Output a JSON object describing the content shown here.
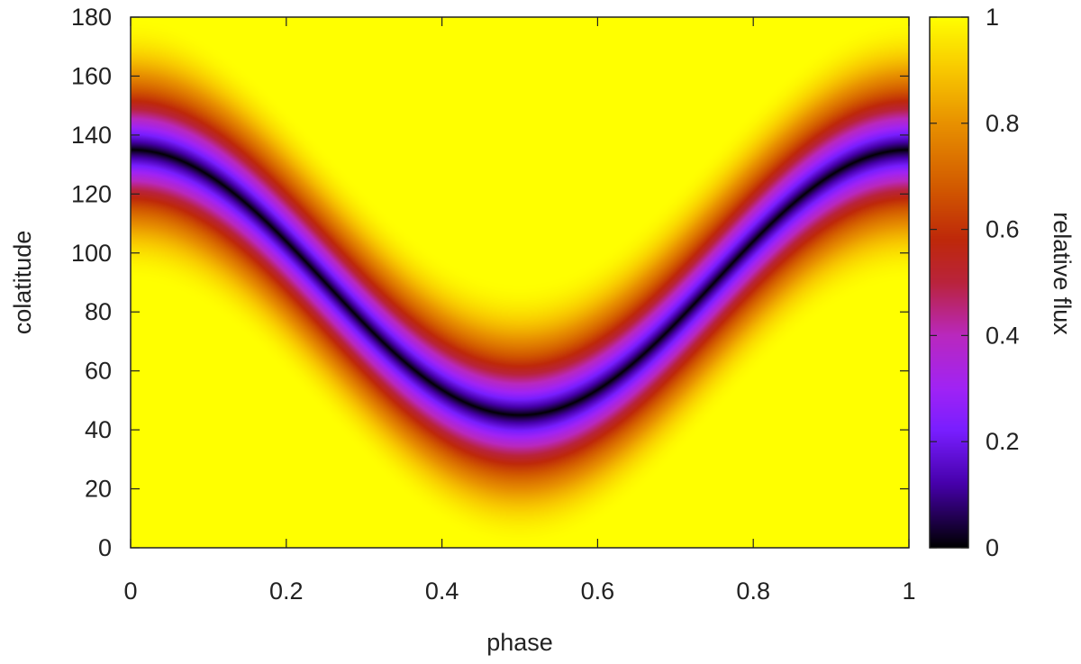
{
  "chart_data": {
    "type": "heatmap",
    "title": "",
    "xlabel": "phase",
    "ylabel": "colatitude",
    "xlim": [
      0,
      1
    ],
    "ylim": [
      0,
      180
    ],
    "x_ticks": [
      0,
      0.2,
      0.4,
      0.6,
      0.8,
      1
    ],
    "x_tick_labels": [
      "0",
      "0.2",
      "0.4",
      "0.6",
      "0.8",
      "1"
    ],
    "y_ticks": [
      0,
      20,
      40,
      60,
      80,
      100,
      120,
      140,
      160,
      180
    ],
    "y_tick_labels": [
      "0",
      "20",
      "40",
      "60",
      "80",
      "100",
      "120",
      "140",
      "160",
      "180"
    ],
    "colorbar": {
      "label": "relative flux",
      "range": [
        0,
        1
      ],
      "ticks": [
        0,
        0.2,
        0.4,
        0.6,
        0.8,
        1
      ],
      "tick_labels": [
        "0",
        "0.2",
        "0.4",
        "0.6",
        "0.8",
        "1"
      ],
      "palette": "black-blue-purple-red-orange-yellow"
    },
    "dark_band": {
      "description": "minimum flux curve (colatitude vs phase)",
      "phase": [
        0.0,
        0.1,
        0.2,
        0.25,
        0.3,
        0.35,
        0.4,
        0.45,
        0.5,
        0.55,
        0.6,
        0.65,
        0.7,
        0.75,
        0.8,
        0.9,
        1.0
      ],
      "colatitude": [
        135,
        130,
        112,
        100,
        85,
        71,
        58,
        49,
        45,
        47,
        53,
        65,
        82,
        101,
        117,
        131,
        135
      ]
    },
    "maxima": [
      {
        "phase": 0.43,
        "colatitude": 133,
        "value": 1.0
      },
      {
        "phase": 0.93,
        "colatitude": 48,
        "value": 1.0
      },
      {
        "phase": 0.0,
        "colatitude": 45,
        "value": 0.95
      }
    ]
  }
}
